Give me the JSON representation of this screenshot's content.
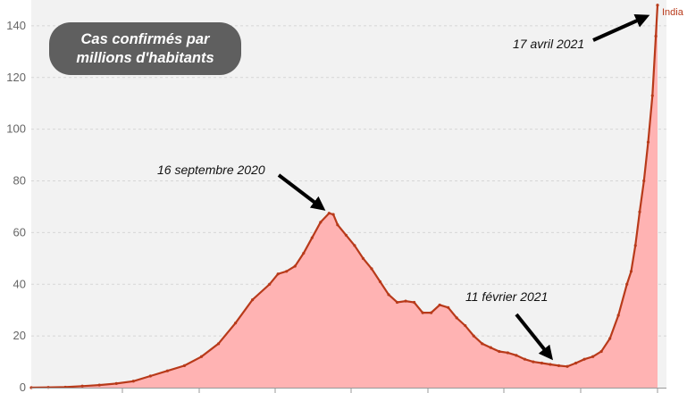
{
  "chart_data": {
    "type": "area",
    "title": "Cas confirmés par millions d'habitants",
    "series": [
      {
        "name": "India",
        "color": "#b83a1a",
        "fill_color": "#ffb3b3",
        "points": [
          [
            0,
            0
          ],
          [
            20,
            0.1
          ],
          [
            40,
            0.2
          ],
          [
            60,
            0.6
          ],
          [
            80,
            1.0
          ],
          [
            100,
            1.6
          ],
          [
            120,
            2.5
          ],
          [
            140,
            4.5
          ],
          [
            160,
            6.5
          ],
          [
            180,
            8.5
          ],
          [
            200,
            12
          ],
          [
            220,
            17
          ],
          [
            240,
            25
          ],
          [
            260,
            34
          ],
          [
            280,
            40
          ],
          [
            290,
            44
          ],
          [
            300,
            45
          ],
          [
            310,
            47
          ],
          [
            320,
            52
          ],
          [
            330,
            58
          ],
          [
            340,
            64
          ],
          [
            350,
            67.5
          ],
          [
            355,
            67
          ],
          [
            360,
            63
          ],
          [
            370,
            59
          ],
          [
            380,
            55
          ],
          [
            390,
            50
          ],
          [
            400,
            46
          ],
          [
            410,
            41
          ],
          [
            420,
            36
          ],
          [
            430,
            33
          ],
          [
            440,
            33.5
          ],
          [
            450,
            33
          ],
          [
            460,
            29
          ],
          [
            470,
            29
          ],
          [
            480,
            32
          ],
          [
            490,
            31
          ],
          [
            500,
            27
          ],
          [
            510,
            24
          ],
          [
            520,
            20
          ],
          [
            530,
            17
          ],
          [
            540,
            15.5
          ],
          [
            550,
            14
          ],
          [
            560,
            13.5
          ],
          [
            570,
            12.5
          ],
          [
            580,
            11
          ],
          [
            590,
            10
          ],
          [
            600,
            9.5
          ],
          [
            610,
            9
          ],
          [
            620,
            8.5
          ],
          [
            630,
            8.2
          ],
          [
            640,
            9.5
          ],
          [
            650,
            11
          ],
          [
            660,
            12
          ],
          [
            670,
            14
          ],
          [
            680,
            19
          ],
          [
            690,
            28
          ],
          [
            700,
            40
          ],
          [
            705,
            45
          ],
          [
            710,
            55
          ],
          [
            715,
            68
          ],
          [
            720,
            80
          ],
          [
            725,
            95
          ],
          [
            730,
            113
          ],
          [
            734,
            136
          ],
          [
            736,
            148
          ]
        ]
      }
    ],
    "ylim": [
      0,
      150
    ],
    "y_ticks": [
      "0",
      "20",
      "40",
      "60",
      "80",
      "100",
      "120",
      "140"
    ],
    "y_tick_values": [
      0,
      20,
      40,
      60,
      80,
      100,
      120,
      140
    ],
    "grid": true,
    "annotations": [
      {
        "text": "17 avril 2021",
        "date": "17 avril 2021",
        "value": 148
      },
      {
        "text": "16 septembre 2020",
        "date": "16 septembre 2020",
        "value": 67.5
      },
      {
        "text": "11 février 2021",
        "date": "11 février 2021",
        "value": 8.2
      }
    ]
  },
  "badge": {
    "line1": "Cas confirmés par",
    "line2": "millions d'habitants"
  }
}
